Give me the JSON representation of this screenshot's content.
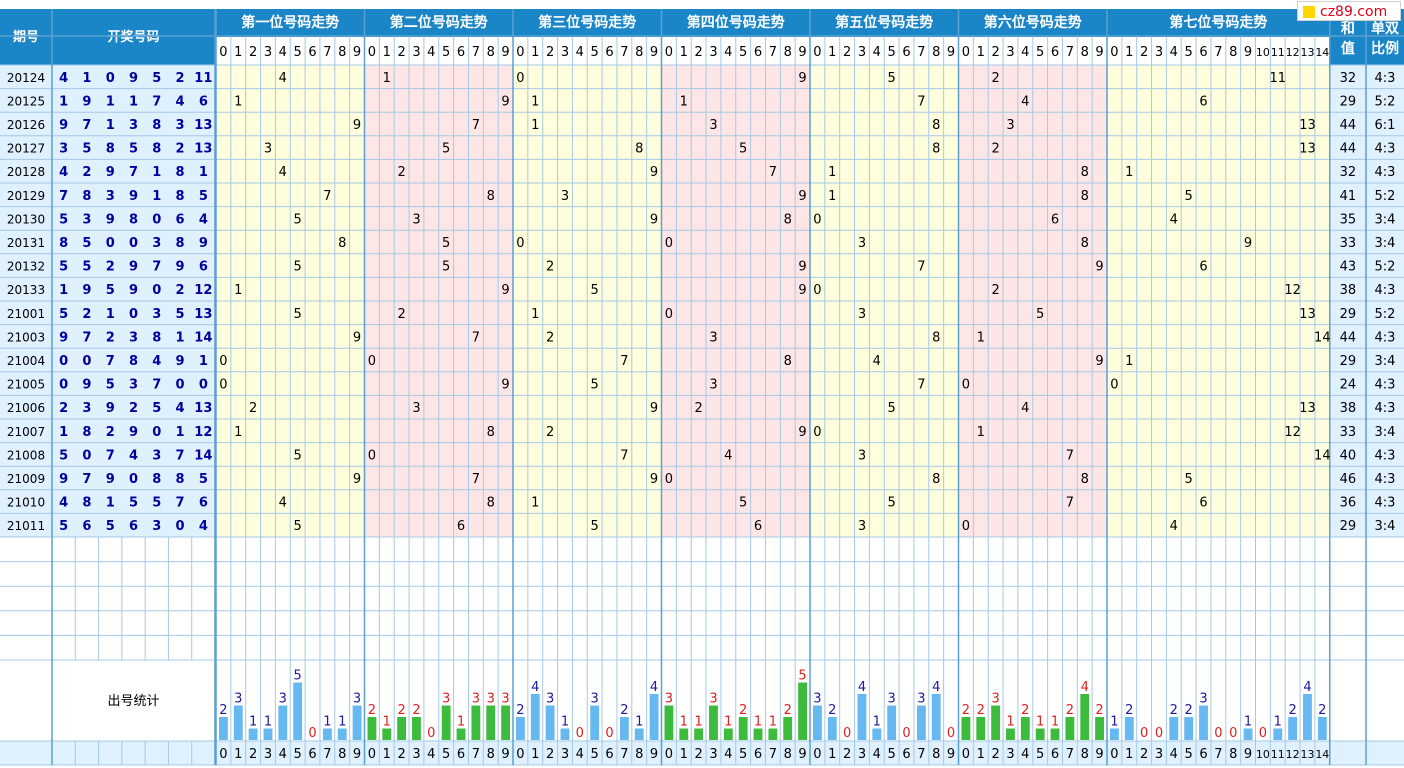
{
  "watermark": "cz89.com",
  "headers": {
    "period": "期号",
    "draw": "开奖号码",
    "sum": "和值",
    "parity": "单双比例",
    "stats_label": "出号统计"
  },
  "colors": {
    "header_bg": "#1a86c8",
    "panel_yellow": "#ffffdd",
    "panel_pink": "#ffe6e6",
    "panel_blue": "#dff0ff",
    "number_blue": "#00009c",
    "bar_blue": "#66b8f0",
    "bar_green": "#3dbb3d",
    "label_red": "#e02020",
    "label_blue": "#1a1aa0",
    "grid_line": "#a6c8e6"
  },
  "chart_data": {
    "type": "table",
    "sections": [
      {
        "title": "第一位号码走势",
        "digits": [
          "0",
          "1",
          "2",
          "3",
          "4",
          "5",
          "6",
          "7",
          "8",
          "9"
        ]
      },
      {
        "title": "第二位号码走势",
        "digits": [
          "0",
          "1",
          "2",
          "3",
          "4",
          "5",
          "6",
          "7",
          "8",
          "9"
        ]
      },
      {
        "title": "第三位号码走势",
        "digits": [
          "0",
          "1",
          "2",
          "3",
          "4",
          "5",
          "6",
          "7",
          "8",
          "9"
        ]
      },
      {
        "title": "第四位号码走势",
        "digits": [
          "0",
          "1",
          "2",
          "3",
          "4",
          "5",
          "6",
          "7",
          "8",
          "9"
        ]
      },
      {
        "title": "第五位号码走势",
        "digits": [
          "0",
          "1",
          "2",
          "3",
          "4",
          "5",
          "6",
          "7",
          "8",
          "9"
        ]
      },
      {
        "title": "第六位号码走势",
        "digits": [
          "0",
          "1",
          "2",
          "3",
          "4",
          "5",
          "6",
          "7",
          "8",
          "9"
        ]
      },
      {
        "title": "第七位号码走势",
        "digits": [
          "0",
          "1",
          "2",
          "3",
          "4",
          "5",
          "6",
          "7",
          "8",
          "9",
          "10",
          "11",
          "12",
          "13",
          "14"
        ]
      }
    ],
    "rows": [
      {
        "period": "20124",
        "draw": [
          4,
          1,
          0,
          9,
          5,
          2,
          11
        ],
        "sum": "32",
        "ratio": "4:3"
      },
      {
        "period": "20125",
        "draw": [
          1,
          9,
          1,
          1,
          7,
          4,
          6
        ],
        "sum": "29",
        "ratio": "5:2"
      },
      {
        "period": "20126",
        "draw": [
          9,
          7,
          1,
          3,
          8,
          3,
          13
        ],
        "sum": "44",
        "ratio": "6:1"
      },
      {
        "period": "20127",
        "draw": [
          3,
          5,
          8,
          5,
          8,
          2,
          13
        ],
        "sum": "44",
        "ratio": "4:3"
      },
      {
        "period": "20128",
        "draw": [
          4,
          2,
          9,
          7,
          1,
          8,
          1
        ],
        "sum": "32",
        "ratio": "4:3"
      },
      {
        "period": "20129",
        "draw": [
          7,
          8,
          3,
          9,
          1,
          8,
          5
        ],
        "sum": "41",
        "ratio": "5:2"
      },
      {
        "period": "20130",
        "draw": [
          5,
          3,
          9,
          8,
          0,
          6,
          4
        ],
        "sum": "35",
        "ratio": "3:4"
      },
      {
        "period": "20131",
        "draw": [
          8,
          5,
          0,
          0,
          3,
          8,
          9
        ],
        "sum": "33",
        "ratio": "3:4"
      },
      {
        "period": "20132",
        "draw": [
          5,
          5,
          2,
          9,
          7,
          9,
          6
        ],
        "sum": "43",
        "ratio": "5:2"
      },
      {
        "period": "20133",
        "draw": [
          1,
          9,
          5,
          9,
          0,
          2,
          12
        ],
        "sum": "38",
        "ratio": "4:3"
      },
      {
        "period": "21001",
        "draw": [
          5,
          2,
          1,
          0,
          3,
          5,
          13
        ],
        "sum": "29",
        "ratio": "5:2"
      },
      {
        "period": "21003",
        "draw": [
          9,
          7,
          2,
          3,
          8,
          1,
          14
        ],
        "sum": "44",
        "ratio": "4:3"
      },
      {
        "period": "21004",
        "draw": [
          0,
          0,
          7,
          8,
          4,
          9,
          1
        ],
        "sum": "29",
        "ratio": "3:4"
      },
      {
        "period": "21005",
        "draw": [
          0,
          9,
          5,
          3,
          7,
          0,
          0
        ],
        "sum": "24",
        "ratio": "4:3"
      },
      {
        "period": "21006",
        "draw": [
          2,
          3,
          9,
          2,
          5,
          4,
          13
        ],
        "sum": "38",
        "ratio": "4:3"
      },
      {
        "period": "21007",
        "draw": [
          1,
          8,
          2,
          9,
          0,
          1,
          12
        ],
        "sum": "33",
        "ratio": "3:4"
      },
      {
        "period": "21008",
        "draw": [
          5,
          0,
          7,
          4,
          3,
          7,
          14
        ],
        "sum": "40",
        "ratio": "4:3"
      },
      {
        "period": "21009",
        "draw": [
          9,
          7,
          9,
          0,
          8,
          8,
          5
        ],
        "sum": "46",
        "ratio": "4:3"
      },
      {
        "period": "21010",
        "draw": [
          4,
          8,
          1,
          5,
          5,
          7,
          6
        ],
        "sum": "36",
        "ratio": "4:3"
      },
      {
        "period": "21011",
        "draw": [
          5,
          6,
          5,
          6,
          3,
          0,
          4
        ],
        "sum": "29",
        "ratio": "3:4"
      }
    ],
    "stats": [
      [
        2,
        3,
        1,
        1,
        3,
        5,
        0,
        1,
        1,
        3
      ],
      [
        2,
        1,
        2,
        2,
        0,
        3,
        1,
        3,
        3,
        3
      ],
      [
        2,
        4,
        3,
        1,
        0,
        3,
        0,
        2,
        1,
        4
      ],
      [
        3,
        1,
        1,
        3,
        1,
        2,
        1,
        1,
        2,
        5
      ],
      [
        3,
        2,
        0,
        4,
        1,
        3,
        0,
        3,
        4,
        0
      ],
      [
        2,
        2,
        3,
        1,
        2,
        1,
        1,
        2,
        4,
        2
      ],
      [
        1,
        2,
        0,
        0,
        2,
        2,
        3,
        0,
        0,
        1,
        0,
        1,
        2,
        4,
        2
      ]
    ]
  }
}
